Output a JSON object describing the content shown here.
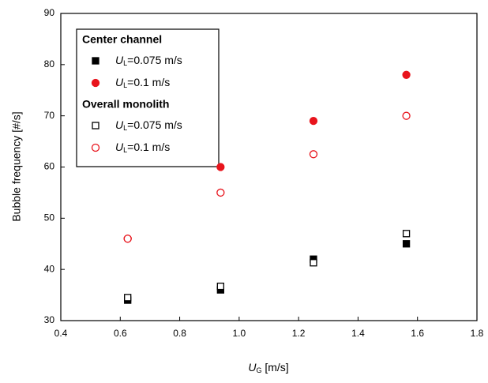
{
  "chart_data": {
    "type": "scatter",
    "xlabel": [
      "U",
      "G",
      " [m/s]"
    ],
    "ylabel": "Bubble frequency [#/s]",
    "x": [
      0.625,
      0.9375,
      1.25,
      1.5625
    ],
    "xlim": [
      0.4,
      1.8
    ],
    "xticks": [
      0.4,
      0.6,
      0.8,
      {
        "value": 1,
        "label": "1.0"
      },
      1.2,
      1.4,
      1.6,
      1.8
    ],
    "ylim": [
      30,
      90
    ],
    "yticks": [
      30,
      40,
      50,
      60,
      70,
      80,
      90
    ],
    "legend": "top-left",
    "groups": [
      {
        "title": "Center channel",
        "series": [
          {
            "name": [
              "U",
              "L",
              "=0.075 m/s"
            ],
            "color": "#000000",
            "marker": "square",
            "filled": true,
            "values": [
              34,
              36,
              42,
              45
            ]
          },
          {
            "name": [
              "U",
              "L",
              "=0.1 m/s"
            ],
            "color": "#e8141c",
            "marker": "circle",
            "filled": true,
            "values": [
              46,
              60,
              69,
              78
            ]
          }
        ]
      },
      {
        "title": "Overall monolith",
        "series": [
          {
            "name": [
              "U",
              "L",
              "=0.075 m/s"
            ],
            "color": "#000000",
            "marker": "square",
            "filled": false,
            "values": [
              34.5,
              36.7,
              41.3,
              47
            ]
          },
          {
            "name": [
              "U",
              "L",
              "=0.1 m/s"
            ],
            "color": "#e8141c",
            "marker": "circle",
            "filled": false,
            "values": [
              46,
              55,
              62.5,
              70
            ]
          }
        ]
      }
    ]
  }
}
